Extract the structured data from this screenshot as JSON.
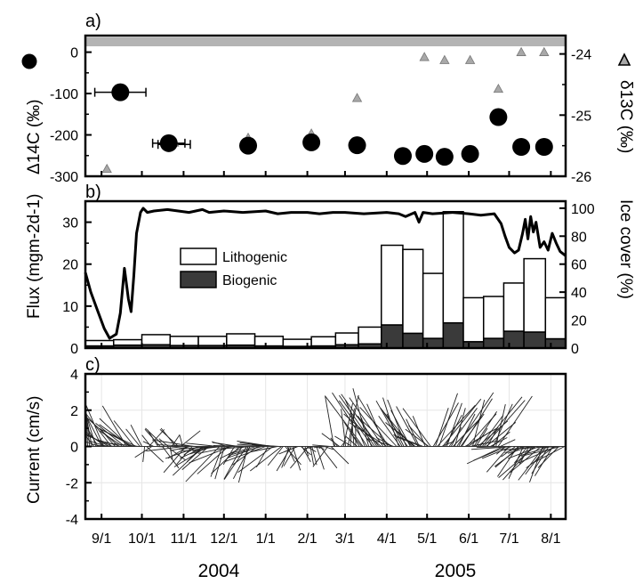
{
  "figure": {
    "panel_labels": [
      "a)",
      "b)",
      "c)"
    ],
    "years": [
      "2004",
      "2005"
    ],
    "months": [
      "9/1",
      "10/1",
      "11/1",
      "12/1",
      "1/1",
      "2/1",
      "3/1",
      "4/1",
      "5/1",
      "6/1",
      "7/1",
      "8/1"
    ],
    "colors": {
      "lithogenic": "#ffffff",
      "biogenic": "#3a3a3a",
      "triangle": "#a8a8a8",
      "band": "#b4b4b4"
    }
  },
  "chart_data": [
    {
      "panel": "a)",
      "type": "scatter",
      "ylabel_left": "Δ14C (‰)",
      "ylabel_right": "δ13C (‰)",
      "ylim_left": [
        -300,
        40
      ],
      "ylim_right": [
        -26,
        -23.7
      ],
      "yticks_left": [
        "0",
        "-100",
        "-200",
        "-300"
      ],
      "yticks_right": [
        "-24",
        "-25",
        "-26"
      ],
      "series": [
        {
          "name": "Δ14C",
          "marker": "circle",
          "x": [
            "2004-09-15",
            "2004-10-21",
            "2004-12-19",
            "2005-02-04",
            "2005-03-10",
            "2005-04-13",
            "2005-04-29",
            "2005-05-14",
            "2005-06-02",
            "2005-06-23",
            "2005-07-10",
            "2005-07-27"
          ],
          "y": [
            -97,
            -220,
            -226,
            -218,
            -225,
            -251,
            -246,
            -253,
            -246,
            -157,
            -229,
            -229
          ],
          "xerr_days": [
            19,
            12,
            0,
            0,
            0,
            0,
            0,
            0,
            0,
            0,
            0,
            0
          ]
        },
        {
          "name": "δ13C",
          "marker": "triangle",
          "x": [
            "2004-09-05",
            "2004-10-25",
            "2004-12-19",
            "2005-02-04",
            "2005-03-10",
            "2005-04-29",
            "2005-05-14",
            "2005-06-02",
            "2005-06-23",
            "2005-07-10",
            "2005-07-27"
          ],
          "y": [
            -25.88,
            -25.45,
            -25.37,
            -25.3,
            -24.72,
            -24.05,
            -24.1,
            -24.1,
            -24.57,
            -23.97,
            -23.97
          ],
          "xerr_days": [
            0,
            12,
            0,
            0,
            0,
            0,
            0,
            0,
            0,
            0,
            0
          ]
        }
      ]
    },
    {
      "panel": "b)",
      "type": "bar",
      "ylabel_left": "Flux (mgm-2d-1)",
      "ylabel_right": "Ice cover (%)",
      "ylim_left": [
        0,
        35
      ],
      "ylim_right": [
        0,
        105
      ],
      "yticks_left": [
        "0",
        "10",
        "20",
        "30"
      ],
      "yticks_right": [
        "0",
        "20",
        "40",
        "60",
        "80",
        "100"
      ],
      "legend": {
        "placement": "center-left",
        "entries": [
          "Lithogenic",
          "Biogenic"
        ]
      },
      "bins": {
        "start": [
          "2004-08-20",
          "2004-09-10",
          "2004-10-01",
          "2004-10-22",
          "2004-11-12",
          "2004-12-03",
          "2004-12-24",
          "2005-01-14",
          "2005-02-04",
          "2005-02-22",
          "2005-03-11",
          "2005-03-28",
          "2005-04-13",
          "2005-04-28",
          "2005-05-13",
          "2005-05-28",
          "2005-06-12",
          "2005-06-27",
          "2005-07-12",
          "2005-07-28"
        ],
        "end": [
          "2004-09-10",
          "2004-10-01",
          "2004-10-22",
          "2004-11-12",
          "2004-12-03",
          "2004-12-24",
          "2005-01-14",
          "2005-02-04",
          "2005-02-22",
          "2005-03-11",
          "2005-03-28",
          "2005-04-13",
          "2005-04-28",
          "2005-05-13",
          "2005-05-28",
          "2005-06-12",
          "2005-06-27",
          "2005-07-12",
          "2005-07-28",
          "2005-08-12"
        ]
      },
      "series": [
        {
          "name": "Biogenic",
          "values": [
            0.5,
            0.7,
            0.8,
            0.6,
            0.6,
            0.7,
            0.5,
            0.4,
            0.5,
            0.8,
            1.0,
            5.5,
            3.5,
            2.3,
            6.0,
            1.5,
            2.3,
            4.0,
            3.8,
            2.2
          ]
        },
        {
          "name": "Lithogenic",
          "values": [
            1.3,
            1.3,
            2.4,
            2.2,
            2.2,
            2.7,
            2.3,
            1.7,
            2.2,
            2.8,
            4.0,
            19.0,
            20.0,
            15.5,
            26.5,
            10.5,
            10.0,
            11.5,
            17.5,
            9.8
          ]
        }
      ],
      "ice_cover": {
        "name": "Ice cover",
        "x": [
          "2004-08-20",
          "2004-08-24",
          "2004-08-29",
          "2004-09-03",
          "2004-09-07",
          "2004-09-12",
          "2004-09-15",
          "2004-09-18",
          "2004-09-21",
          "2004-09-23",
          "2004-09-25",
          "2004-09-27",
          "2004-09-30",
          "2004-10-02",
          "2004-10-05",
          "2004-10-10",
          "2004-10-20",
          "2004-11-05",
          "2004-11-15",
          "2004-11-20",
          "2004-12-01",
          "2004-12-15",
          "2005-01-01",
          "2005-01-10",
          "2005-01-20",
          "2005-02-01",
          "2005-02-10",
          "2005-02-20",
          "2005-03-01",
          "2005-03-15",
          "2005-04-01",
          "2005-04-10",
          "2005-04-15",
          "2005-04-22",
          "2005-04-25",
          "2005-04-28",
          "2005-05-05",
          "2005-05-20",
          "2005-06-01",
          "2005-06-10",
          "2005-06-20",
          "2005-06-25",
          "2005-06-28",
          "2005-07-01",
          "2005-07-05",
          "2005-07-08",
          "2005-07-11",
          "2005-07-13",
          "2005-07-15",
          "2005-07-17",
          "2005-07-19",
          "2005-07-21",
          "2005-07-24",
          "2005-07-27",
          "2005-07-30",
          "2005-08-02",
          "2005-08-05",
          "2005-08-08",
          "2005-08-12"
        ],
        "y": [
          54,
          40,
          27,
          14,
          7,
          10,
          25,
          57,
          35,
          26,
          52,
          82,
          97,
          100,
          97,
          98,
          99,
          97,
          99,
          97,
          98,
          97,
          98,
          96,
          97,
          97,
          96,
          97,
          97,
          96,
          97,
          96,
          94,
          97,
          90,
          97,
          96,
          97,
          96,
          95,
          96,
          89,
          80,
          72,
          68,
          70,
          82,
          92,
          78,
          94,
          83,
          90,
          72,
          76,
          70,
          82,
          75,
          69,
          66
        ]
      }
    },
    {
      "panel": "c)",
      "type": "line",
      "ylabel": "Current (cm/s)",
      "ylim": [
        -4,
        4
      ],
      "yticks": [
        "4",
        "2",
        "0",
        "-2",
        "-4"
      ],
      "segments": [
        {
          "start": "2004-08-20",
          "end": "2004-10-01",
          "trend": "northward-westward",
          "mean_v": 1.2,
          "max_v": 2.9
        },
        {
          "start": "2004-10-01",
          "end": "2004-11-01",
          "trend": "mixed-weak",
          "mean_v": 0.0,
          "max_v": 1.6
        },
        {
          "start": "2004-11-01",
          "end": "2005-01-15",
          "trend": "southward-westward",
          "mean_v": -0.8,
          "max_v": 2.4
        },
        {
          "start": "2005-01-15",
          "end": "2005-02-20",
          "trend": "southward",
          "mean_v": -0.6,
          "max_v": 1.6
        },
        {
          "start": "2005-02-20",
          "end": "2005-03-10",
          "trend": "northward",
          "mean_v": 1.5,
          "max_v": 3.4
        },
        {
          "start": "2005-03-10",
          "end": "2005-05-05",
          "trend": "northward-westward",
          "mean_v": 1.8,
          "max_v": 3.7
        },
        {
          "start": "2005-05-05",
          "end": "2005-06-25",
          "trend": "northward-eastward",
          "mean_v": 1.6,
          "max_v": 3.5
        },
        {
          "start": "2005-06-25",
          "end": "2005-08-12",
          "trend": "southward-westward",
          "mean_v": -1.0,
          "max_v": 2.3
        }
      ]
    }
  ]
}
